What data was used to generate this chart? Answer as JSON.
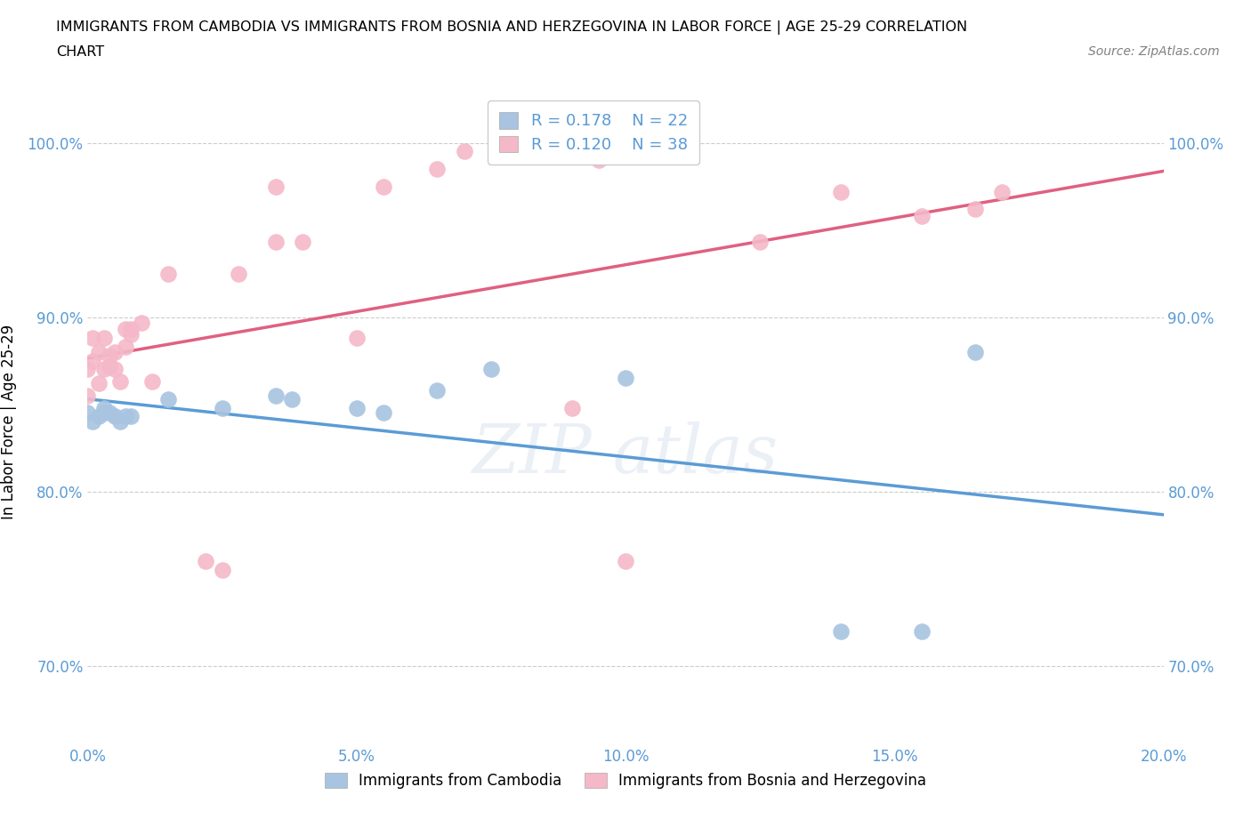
{
  "title_line1": "IMMIGRANTS FROM CAMBODIA VS IMMIGRANTS FROM BOSNIA AND HERZEGOVINA IN LABOR FORCE | AGE 25-29 CORRELATION",
  "title_line2": "CHART",
  "source_text": "Source: ZipAtlas.com",
  "ylabel": "In Labor Force | Age 25-29",
  "xlim": [
    0.0,
    0.2
  ],
  "ylim": [
    0.655,
    1.025
  ],
  "ytick_vals": [
    0.7,
    0.8,
    0.9,
    1.0
  ],
  "ytick_labels": [
    "70.0%",
    "80.0%",
    "90.0%",
    "100.0%"
  ],
  "xtick_vals": [
    0.0,
    0.05,
    0.1,
    0.15,
    0.2
  ],
  "xtick_labels": [
    "0.0%",
    "5.0%",
    "10.0%",
    "15.0%",
    "20.0%"
  ],
  "cambodia_color": "#a8c4e0",
  "cambodia_line_color": "#5b9bd5",
  "bosnia_color": "#f4b8c8",
  "bosnia_line_color": "#e06080",
  "cambodia_R": 0.178,
  "cambodia_N": 22,
  "bosnia_R": 0.12,
  "bosnia_N": 38,
  "legend_label_cambodia": "Immigrants from Cambodia",
  "legend_label_bosnia": "Immigrants from Bosnia and Herzegovina",
  "cambodia_x": [
    0.0,
    0.001,
    0.002,
    0.003,
    0.003,
    0.004,
    0.005,
    0.006,
    0.007,
    0.008,
    0.015,
    0.025,
    0.035,
    0.038,
    0.05,
    0.055,
    0.065,
    0.075,
    0.1,
    0.14,
    0.155,
    0.165
  ],
  "cambodia_y": [
    0.845,
    0.84,
    0.843,
    0.848,
    0.845,
    0.845,
    0.843,
    0.84,
    0.843,
    0.843,
    0.853,
    0.848,
    0.855,
    0.853,
    0.848,
    0.845,
    0.858,
    0.87,
    0.865,
    0.72,
    0.72,
    0.88
  ],
  "bosnia_x": [
    0.0,
    0.0,
    0.001,
    0.001,
    0.002,
    0.002,
    0.003,
    0.003,
    0.004,
    0.004,
    0.005,
    0.005,
    0.006,
    0.007,
    0.007,
    0.008,
    0.008,
    0.01,
    0.012,
    0.015,
    0.022,
    0.025,
    0.028,
    0.035,
    0.035,
    0.04,
    0.05,
    0.055,
    0.065,
    0.07,
    0.09,
    0.095,
    0.1,
    0.125,
    0.14,
    0.155,
    0.165,
    0.17
  ],
  "bosnia_y": [
    0.855,
    0.87,
    0.875,
    0.888,
    0.862,
    0.88,
    0.87,
    0.888,
    0.872,
    0.878,
    0.87,
    0.88,
    0.863,
    0.883,
    0.893,
    0.89,
    0.893,
    0.897,
    0.863,
    0.925,
    0.76,
    0.755,
    0.925,
    0.943,
    0.975,
    0.943,
    0.888,
    0.975,
    0.985,
    0.995,
    0.848,
    0.99,
    0.76,
    0.943,
    0.972,
    0.958,
    0.962,
    0.972
  ],
  "grid_color": "#cccccc",
  "tick_color": "#5b9bd5",
  "title_fontsize": 11.5,
  "axis_label_fontsize": 12,
  "tick_fontsize": 12
}
